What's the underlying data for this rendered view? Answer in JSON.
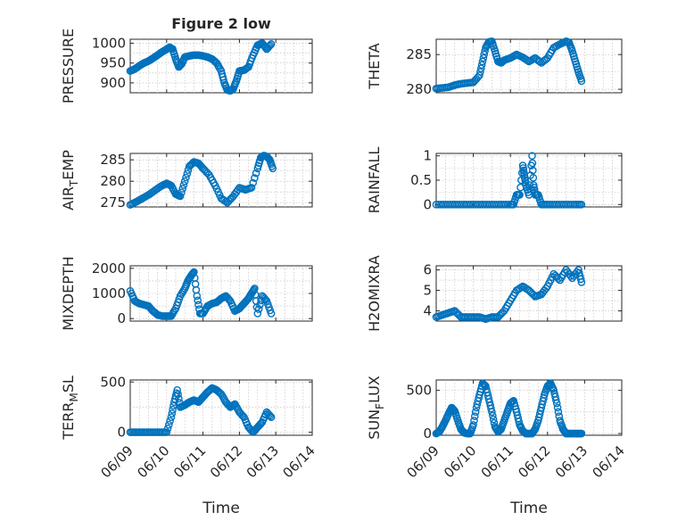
{
  "figure": {
    "title": "Figure 2 low",
    "marker_color": "#0072bd"
  },
  "chart_data": [
    {
      "type": "scatter",
      "panel": "pressure",
      "ylabel": "PRESSURE",
      "ylabel_sub": "",
      "ylabel_tail": "",
      "xlim": [
        "06/09",
        "06/14"
      ],
      "ylim": [
        875,
        1010
      ],
      "yticks": [
        900,
        950,
        1000
      ],
      "xticks": [],
      "xlabel": "",
      "title": "Figure 2 low",
      "x": [
        "06/09 00:00",
        "06/09 03:00",
        "06/09 06:00",
        "06/09 09:00",
        "06/09 12:00",
        "06/09 15:00",
        "06/09 18:00",
        "06/09 21:00",
        "06/10 00:00",
        "06/10 02:00",
        "06/10 04:00",
        "06/10 06:00",
        "06/10 08:00",
        "06/10 10:00",
        "06/10 12:00",
        "06/10 15:00",
        "06/10 18:00",
        "06/10 21:00",
        "06/11 00:00",
        "06/11 03:00",
        "06/11 06:00",
        "06/11 09:00",
        "06/11 12:00",
        "06/11 14:00",
        "06/11 16:00",
        "06/11 18:00",
        "06/11 20:00",
        "06/11 22:00",
        "06/12 00:00",
        "06/12 03:00",
        "06/12 06:00",
        "06/12 09:00",
        "06/12 12:00",
        "06/12 15:00",
        "06/12 18:00",
        "06/12 21:00"
      ],
      "y": [
        930,
        935,
        943,
        950,
        955,
        962,
        970,
        978,
        985,
        990,
        985,
        960,
        940,
        948,
        965,
        968,
        970,
        970,
        968,
        965,
        960,
        950,
        930,
        900,
        882,
        880,
        885,
        905,
        930,
        932,
        940,
        970,
        995,
        1000,
        985,
        998
      ]
    },
    {
      "type": "scatter",
      "panel": "theta",
      "ylabel": "THETA",
      "ylabel_sub": "",
      "ylabel_tail": "",
      "xlim": [
        "06/09",
        "06/14"
      ],
      "ylim": [
        279.5,
        287.2
      ],
      "yticks": [
        280,
        285
      ],
      "xticks": [],
      "xlabel": "",
      "title": "",
      "x": [
        "06/09 00:00",
        "06/09 04:00",
        "06/09 08:00",
        "06/09 12:00",
        "06/09 16:00",
        "06/09 20:00",
        "06/10 00:00",
        "06/10 04:00",
        "06/10 06:00",
        "06/10 08:00",
        "06/10 10:00",
        "06/10 12:00",
        "06/10 14:00",
        "06/10 16:00",
        "06/10 18:00",
        "06/10 20:00",
        "06/11 00:00",
        "06/11 04:00",
        "06/11 08:00",
        "06/11 12:00",
        "06/11 16:00",
        "06/11 20:00",
        "06/12 00:00",
        "06/12 04:00",
        "06/12 08:00",
        "06/12 12:00",
        "06/12 14:00",
        "06/12 16:00",
        "06/12 18:00",
        "06/12 20:00",
        "06/12 22:00"
      ],
      "y": [
        280.1,
        280.2,
        280.3,
        280.6,
        280.8,
        280.9,
        281.0,
        282.0,
        284.0,
        286.0,
        286.8,
        286.9,
        285.5,
        284.0,
        283.8,
        284.2,
        284.5,
        285.0,
        284.6,
        284.0,
        284.5,
        283.8,
        284.5,
        286.0,
        286.5,
        286.9,
        286.7,
        285.5,
        284.0,
        282.5,
        281.2
      ]
    },
    {
      "type": "scatter",
      "panel": "air_temp",
      "ylabel": "AIR",
      "ylabel_sub": "T",
      "ylabel_tail": "EMP",
      "xlim": [
        "06/09",
        "06/14"
      ],
      "ylim": [
        274,
        286.5
      ],
      "yticks": [
        275,
        280,
        285
      ],
      "xticks": [],
      "xlabel": "",
      "title": "",
      "x": [
        "06/09 00:00",
        "06/09 04:00",
        "06/09 08:00",
        "06/09 12:00",
        "06/09 16:00",
        "06/09 20:00",
        "06/10 00:00",
        "06/10 03:00",
        "06/10 06:00",
        "06/10 09:00",
        "06/10 12:00",
        "06/10 15:00",
        "06/10 18:00",
        "06/10 21:00",
        "06/11 00:00",
        "06/11 04:00",
        "06/11 08:00",
        "06/11 12:00",
        "06/11 16:00",
        "06/11 20:00",
        "06/12 00:00",
        "06/12 04:00",
        "06/12 08:00",
        "06/12 12:00",
        "06/12 14:00",
        "06/12 16:00",
        "06/12 18:00",
        "06/12 20:00",
        "06/12 22:00"
      ],
      "y": [
        274.5,
        275.2,
        276.0,
        276.8,
        277.8,
        278.8,
        279.5,
        279.0,
        277.0,
        276.5,
        280.0,
        283.5,
        284.5,
        284.2,
        283.0,
        281.5,
        279.0,
        276.0,
        275.0,
        276.5,
        278.5,
        278.0,
        278.5,
        283.0,
        285.5,
        286.0,
        285.8,
        285.0,
        283.0
      ]
    },
    {
      "type": "scatter",
      "panel": "rainfall",
      "ylabel": "RAINFALL",
      "ylabel_sub": "",
      "ylabel_tail": "",
      "xlim": [
        "06/09",
        "06/14"
      ],
      "ylim": [
        -0.05,
        1.05
      ],
      "yticks": [
        0,
        0.5,
        1
      ],
      "xticks": [],
      "xlabel": "",
      "title": "",
      "x": [
        "06/09 00:00",
        "06/09 06:00",
        "06/09 12:00",
        "06/09 18:00",
        "06/10 00:00",
        "06/10 06:00",
        "06/10 12:00",
        "06/10 18:00",
        "06/11 00:00",
        "06/11 02:00",
        "06/11 04:00",
        "06/11 06:00",
        "06/11 08:00",
        "06/11 09:00",
        "06/11 10:00",
        "06/11 12:00",
        "06/11 14:00",
        "06/11 15:00",
        "06/11 16:00",
        "06/11 18:00",
        "06/11 20:00",
        "06/12 00:00",
        "06/12 06:00",
        "06/12 12:00",
        "06/12 18:00",
        "06/12 22:00"
      ],
      "y": [
        0,
        0,
        0,
        0,
        0,
        0,
        0,
        0,
        0,
        0,
        0.2,
        0.2,
        0.8,
        0.6,
        0.4,
        0.2,
        1.0,
        0.4,
        0.2,
        0.2,
        0,
        0,
        0,
        0,
        0,
        0
      ]
    },
    {
      "type": "scatter",
      "panel": "mixdepth",
      "ylabel": "MIXDEPTH",
      "ylabel_sub": "",
      "ylabel_tail": "",
      "xlim": [
        "06/09",
        "06/14"
      ],
      "ylim": [
        -100,
        2100
      ],
      "yticks": [
        0,
        1000,
        2000
      ],
      "xticks": [],
      "xlabel": "",
      "title": "",
      "x": [
        "06/09 00:00",
        "06/09 03:00",
        "06/09 06:00",
        "06/09 09:00",
        "06/09 12:00",
        "06/09 15:00",
        "06/09 18:00",
        "06/09 21:00",
        "06/10 00:00",
        "06/10 03:00",
        "06/10 06:00",
        "06/10 09:00",
        "06/10 12:00",
        "06/10 14:00",
        "06/10 16:00",
        "06/10 18:00",
        "06/10 20:00",
        "06/10 22:00",
        "06/11 00:00",
        "06/11 03:00",
        "06/11 06:00",
        "06/11 09:00",
        "06/11 12:00",
        "06/11 15:00",
        "06/11 18:00",
        "06/11 21:00",
        "06/12 00:00",
        "06/12 03:00",
        "06/12 06:00",
        "06/12 08:00",
        "06/12 10:00",
        "06/12 12:00",
        "06/12 15:00",
        "06/12 18:00",
        "06/12 21:00"
      ],
      "y": [
        1100,
        700,
        600,
        550,
        500,
        300,
        150,
        100,
        100,
        100,
        400,
        900,
        1200,
        1500,
        1700,
        1850,
        900,
        200,
        200,
        500,
        600,
        650,
        800,
        900,
        700,
        300,
        400,
        600,
        800,
        1000,
        1200,
        200,
        900,
        700,
        200
      ]
    },
    {
      "type": "scatter",
      "panel": "h2omixra",
      "ylabel": "H2OMIXRA",
      "ylabel_sub": "",
      "ylabel_tail": "",
      "xlim": [
        "06/09",
        "06/14"
      ],
      "ylim": [
        3.5,
        6.2
      ],
      "yticks": [
        4,
        5,
        6
      ],
      "xticks": [],
      "xlabel": "",
      "title": "",
      "x": [
        "06/09 00:00",
        "06/09 04:00",
        "06/09 08:00",
        "06/09 12:00",
        "06/09 16:00",
        "06/09 20:00",
        "06/10 00:00",
        "06/10 04:00",
        "06/10 08:00",
        "06/10 12:00",
        "06/10 16:00",
        "06/10 20:00",
        "06/11 00:00",
        "06/11 04:00",
        "06/11 08:00",
        "06/11 12:00",
        "06/11 16:00",
        "06/11 20:00",
        "06/12 00:00",
        "06/12 04:00",
        "06/12 08:00",
        "06/12 12:00",
        "06/12 16:00",
        "06/12 20:00",
        "06/12 22:00"
      ],
      "y": [
        3.7,
        3.8,
        3.9,
        4.0,
        3.7,
        3.7,
        3.7,
        3.7,
        3.6,
        3.7,
        3.7,
        4.0,
        4.5,
        5.0,
        5.2,
        5.0,
        4.7,
        4.8,
        5.2,
        5.8,
        5.5,
        6.0,
        5.6,
        6.0,
        5.4
      ]
    },
    {
      "type": "scatter",
      "panel": "terr_msl",
      "ylabel": "TERR",
      "ylabel_sub": "M",
      "ylabel_tail": "SL",
      "xlim": [
        "06/09",
        "06/14"
      ],
      "ylim": [
        -30,
        520
      ],
      "yticks": [
        0,
        500
      ],
      "xticks": [
        "06/09",
        "06/10",
        "06/11",
        "06/12",
        "06/13",
        "06/14"
      ],
      "xlabel": "Time",
      "title": "",
      "x": [
        "06/09 00:00",
        "06/09 04:00",
        "06/09 08:00",
        "06/09 12:00",
        "06/09 16:00",
        "06/09 20:00",
        "06/10 00:00",
        "06/10 03:00",
        "06/10 05:00",
        "06/10 07:00",
        "06/10 09:00",
        "06/10 12:00",
        "06/10 15:00",
        "06/10 18:00",
        "06/10 21:00",
        "06/11 00:00",
        "06/11 03:00",
        "06/11 06:00",
        "06/11 09:00",
        "06/11 12:00",
        "06/11 15:00",
        "06/11 18:00",
        "06/11 21:00",
        "06/12 00:00",
        "06/12 03:00",
        "06/12 06:00",
        "06/12 09:00",
        "06/12 12:00",
        "06/12 15:00",
        "06/12 18:00",
        "06/12 21:00"
      ],
      "y": [
        0,
        0,
        0,
        0,
        0,
        0,
        0,
        150,
        300,
        420,
        250,
        270,
        300,
        320,
        300,
        350,
        400,
        440,
        420,
        380,
        300,
        250,
        280,
        200,
        150,
        50,
        0,
        50,
        100,
        200,
        150
      ]
    },
    {
      "type": "scatter",
      "panel": "sun_flux",
      "ylabel": "SUN",
      "ylabel_sub": "F",
      "ylabel_tail": "LUX",
      "xlim": [
        "06/09",
        "06/14"
      ],
      "ylim": [
        -20,
        620
      ],
      "yticks": [
        0,
        500
      ],
      "xticks": [
        "06/09",
        "06/10",
        "06/11",
        "06/12",
        "06/13",
        "06/14"
      ],
      "xlabel": "Time",
      "title": "",
      "x": [
        "06/09 00:00",
        "06/09 02:00",
        "06/09 04:00",
        "06/09 06:00",
        "06/09 08:00",
        "06/09 10:00",
        "06/09 12:00",
        "06/09 14:00",
        "06/09 16:00",
        "06/09 18:00",
        "06/09 20:00",
        "06/09 22:00",
        "06/10 00:00",
        "06/10 02:00",
        "06/10 04:00",
        "06/10 06:00",
        "06/10 08:00",
        "06/10 10:00",
        "06/10 12:00",
        "06/10 14:00",
        "06/10 16:00",
        "06/10 18:00",
        "06/10 20:00",
        "06/10 22:00",
        "06/11 00:00",
        "06/11 02:00",
        "06/11 04:00",
        "06/11 06:00",
        "06/11 08:00",
        "06/11 10:00",
        "06/11 12:00",
        "06/11 14:00",
        "06/11 16:00",
        "06/11 18:00",
        "06/11 20:00",
        "06/11 22:00",
        "06/12 00:00",
        "06/12 02:00",
        "06/12 04:00",
        "06/12 06:00",
        "06/12 08:00",
        "06/12 10:00",
        "06/12 12:00",
        "06/12 14:00",
        "06/12 16:00",
        "06/12 18:00",
        "06/12 20:00",
        "06/12 22:00"
      ],
      "y": [
        0,
        20,
        80,
        150,
        230,
        300,
        260,
        150,
        50,
        10,
        0,
        0,
        100,
        300,
        450,
        580,
        550,
        400,
        250,
        80,
        20,
        50,
        150,
        250,
        350,
        380,
        250,
        100,
        30,
        0,
        0,
        0,
        50,
        150,
        300,
        450,
        550,
        580,
        500,
        350,
        150,
        50,
        0,
        0,
        0,
        0,
        0,
        0
      ]
    }
  ]
}
